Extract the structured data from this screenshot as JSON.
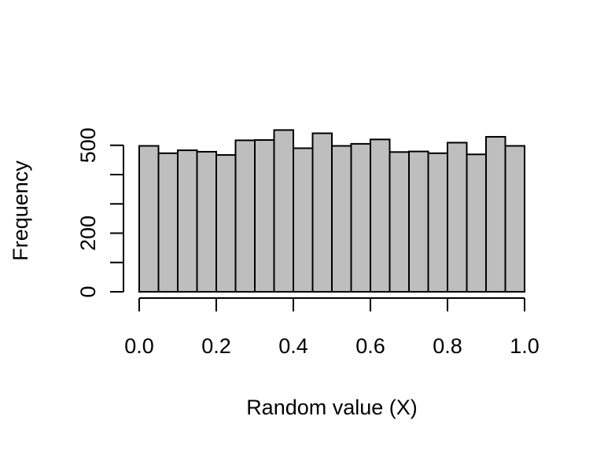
{
  "chart_data": {
    "type": "bar",
    "title": "",
    "xlabel": "Random value (X)",
    "ylabel": "Frequency",
    "bin_edges": [
      0.0,
      0.05,
      0.1,
      0.15,
      0.2,
      0.25,
      0.3,
      0.35,
      0.4,
      0.45,
      0.5,
      0.55,
      0.6,
      0.65,
      0.7,
      0.75,
      0.8,
      0.85,
      0.9,
      0.95,
      1.0
    ],
    "values": [
      498,
      473,
      483,
      478,
      467,
      517,
      518,
      552,
      490,
      541,
      498,
      505,
      520,
      477,
      479,
      473,
      509,
      469,
      529,
      498
    ],
    "xlim": [
      0,
      1
    ],
    "ylim": [
      0,
      552
    ],
    "x_ticks": [
      0.0,
      0.2,
      0.4,
      0.6,
      0.8,
      1.0
    ],
    "x_tick_labels": [
      "0.0",
      "0.2",
      "0.4",
      "0.6",
      "0.8",
      "1.0"
    ],
    "y_ticks": [
      0,
      100,
      200,
      300,
      400,
      500
    ],
    "y_tick_labels": [
      "0",
      "",
      "200",
      "",
      "",
      "500"
    ],
    "bar_fill": "#bebebe",
    "bar_stroke": "#000000",
    "grid": false,
    "legend": "none"
  }
}
